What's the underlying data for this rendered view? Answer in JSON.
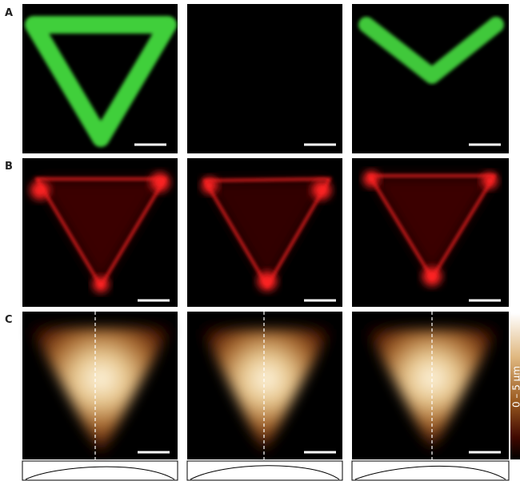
{
  "figure": {
    "row_labels": [
      "A",
      "B",
      "C"
    ],
    "colorbar_label": "0 – 5 µm"
  }
}
